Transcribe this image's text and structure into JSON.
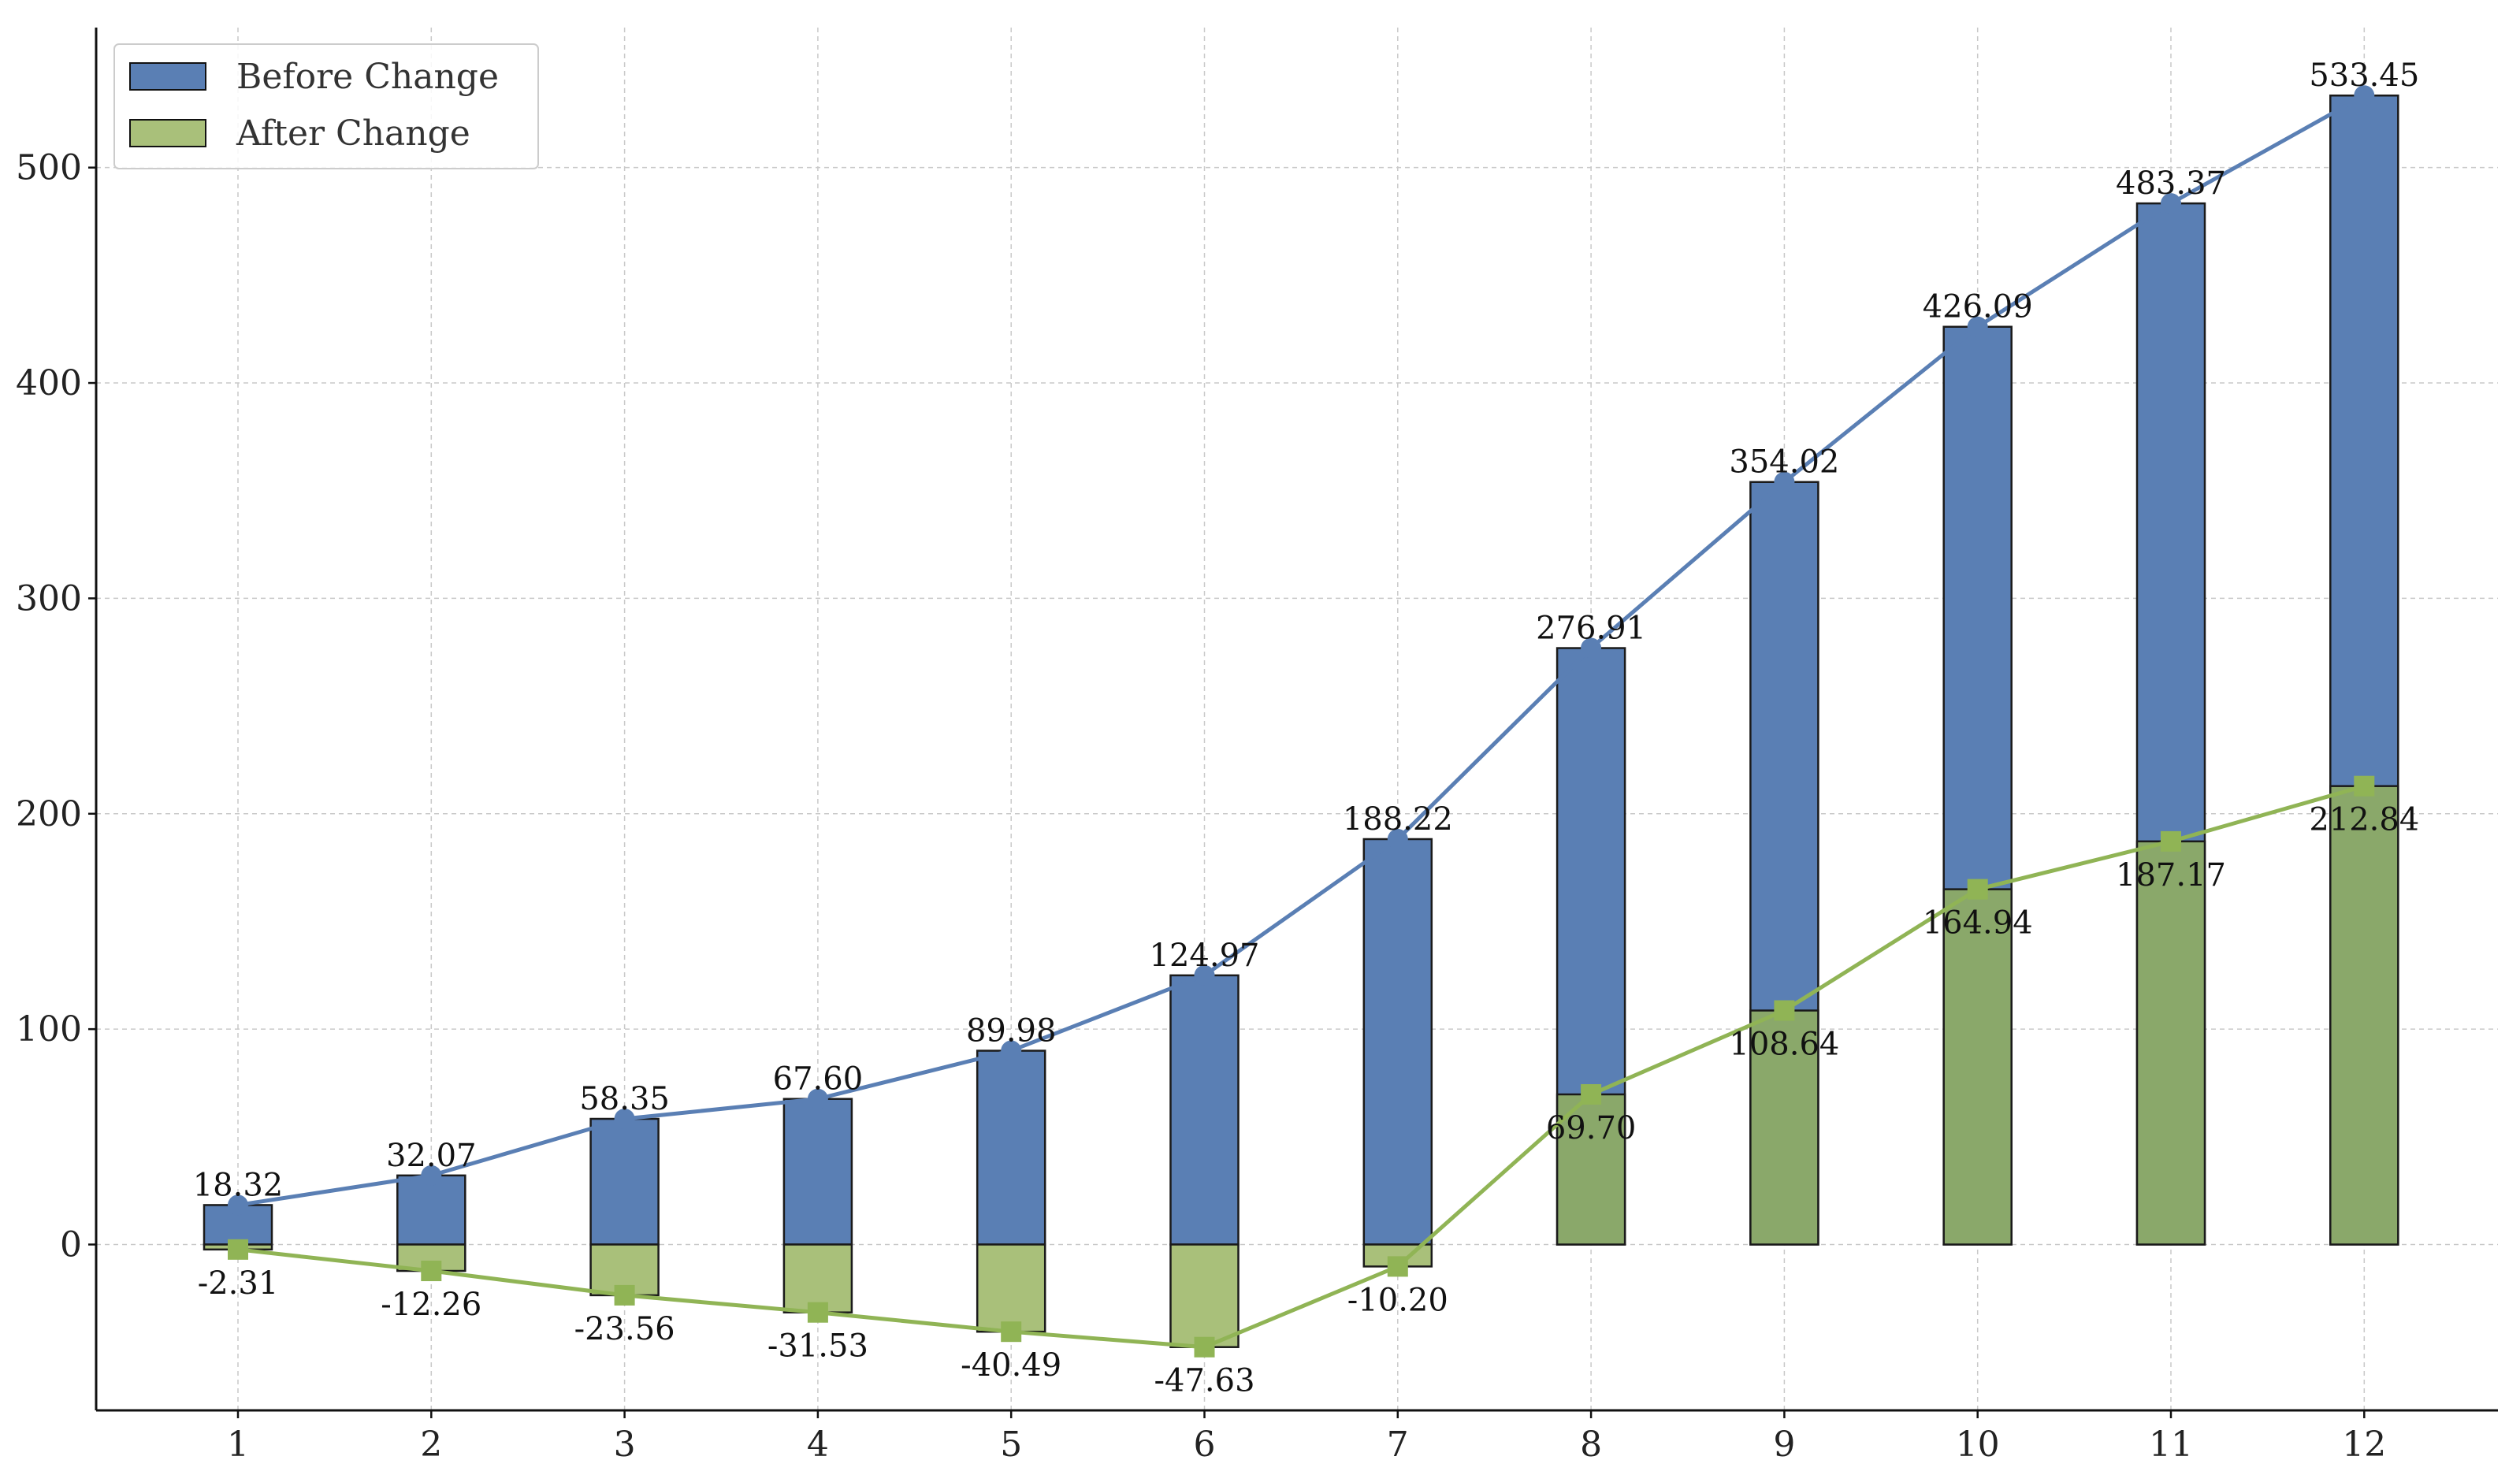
{
  "chart_data": {
    "type": "bar",
    "categories": [
      "1",
      "2",
      "3",
      "4",
      "5",
      "6",
      "7",
      "8",
      "9",
      "10",
      "11",
      "12"
    ],
    "series": [
      {
        "name": "Before Change",
        "values": [
          18.32,
          32.07,
          58.35,
          67.6,
          89.98,
          124.97,
          188.22,
          276.91,
          354.02,
          426.09,
          483.37,
          533.45
        ],
        "labels": [
          "18.32",
          "32.07",
          "58.35",
          "67.60",
          "89.98",
          "124.97",
          "188.22",
          "276.91",
          "354.02",
          "426.09",
          "483.37",
          "533.45"
        ],
        "color": "#5a7fb4",
        "line_color": "#5a7fb4",
        "marker": "circle"
      },
      {
        "name": "After Change",
        "values": [
          -2.31,
          -12.26,
          -23.56,
          -31.53,
          -40.49,
          -47.63,
          -10.2,
          69.7,
          108.64,
          164.94,
          187.17,
          212.84
        ],
        "labels": [
          "-2.31",
          "-12.26",
          "-23.56",
          "-31.53",
          "-40.49",
          "-47.63",
          "-10.20",
          "69.70",
          "108.64",
          "164.94",
          "187.17",
          "212.84"
        ],
        "color": "#a9c07a",
        "overlap_color": "#8aa86a",
        "line_color": "#90b455",
        "marker": "square"
      }
    ],
    "yticks": [
      "0",
      "100",
      "200",
      "300",
      "400",
      "500"
    ],
    "ytick_values": [
      0,
      100,
      200,
      300,
      400,
      500
    ],
    "ylim": [
      -77,
      565
    ],
    "title": "",
    "xlabel": "",
    "ylabel": "",
    "grid": true,
    "legend_position": "top-left"
  }
}
